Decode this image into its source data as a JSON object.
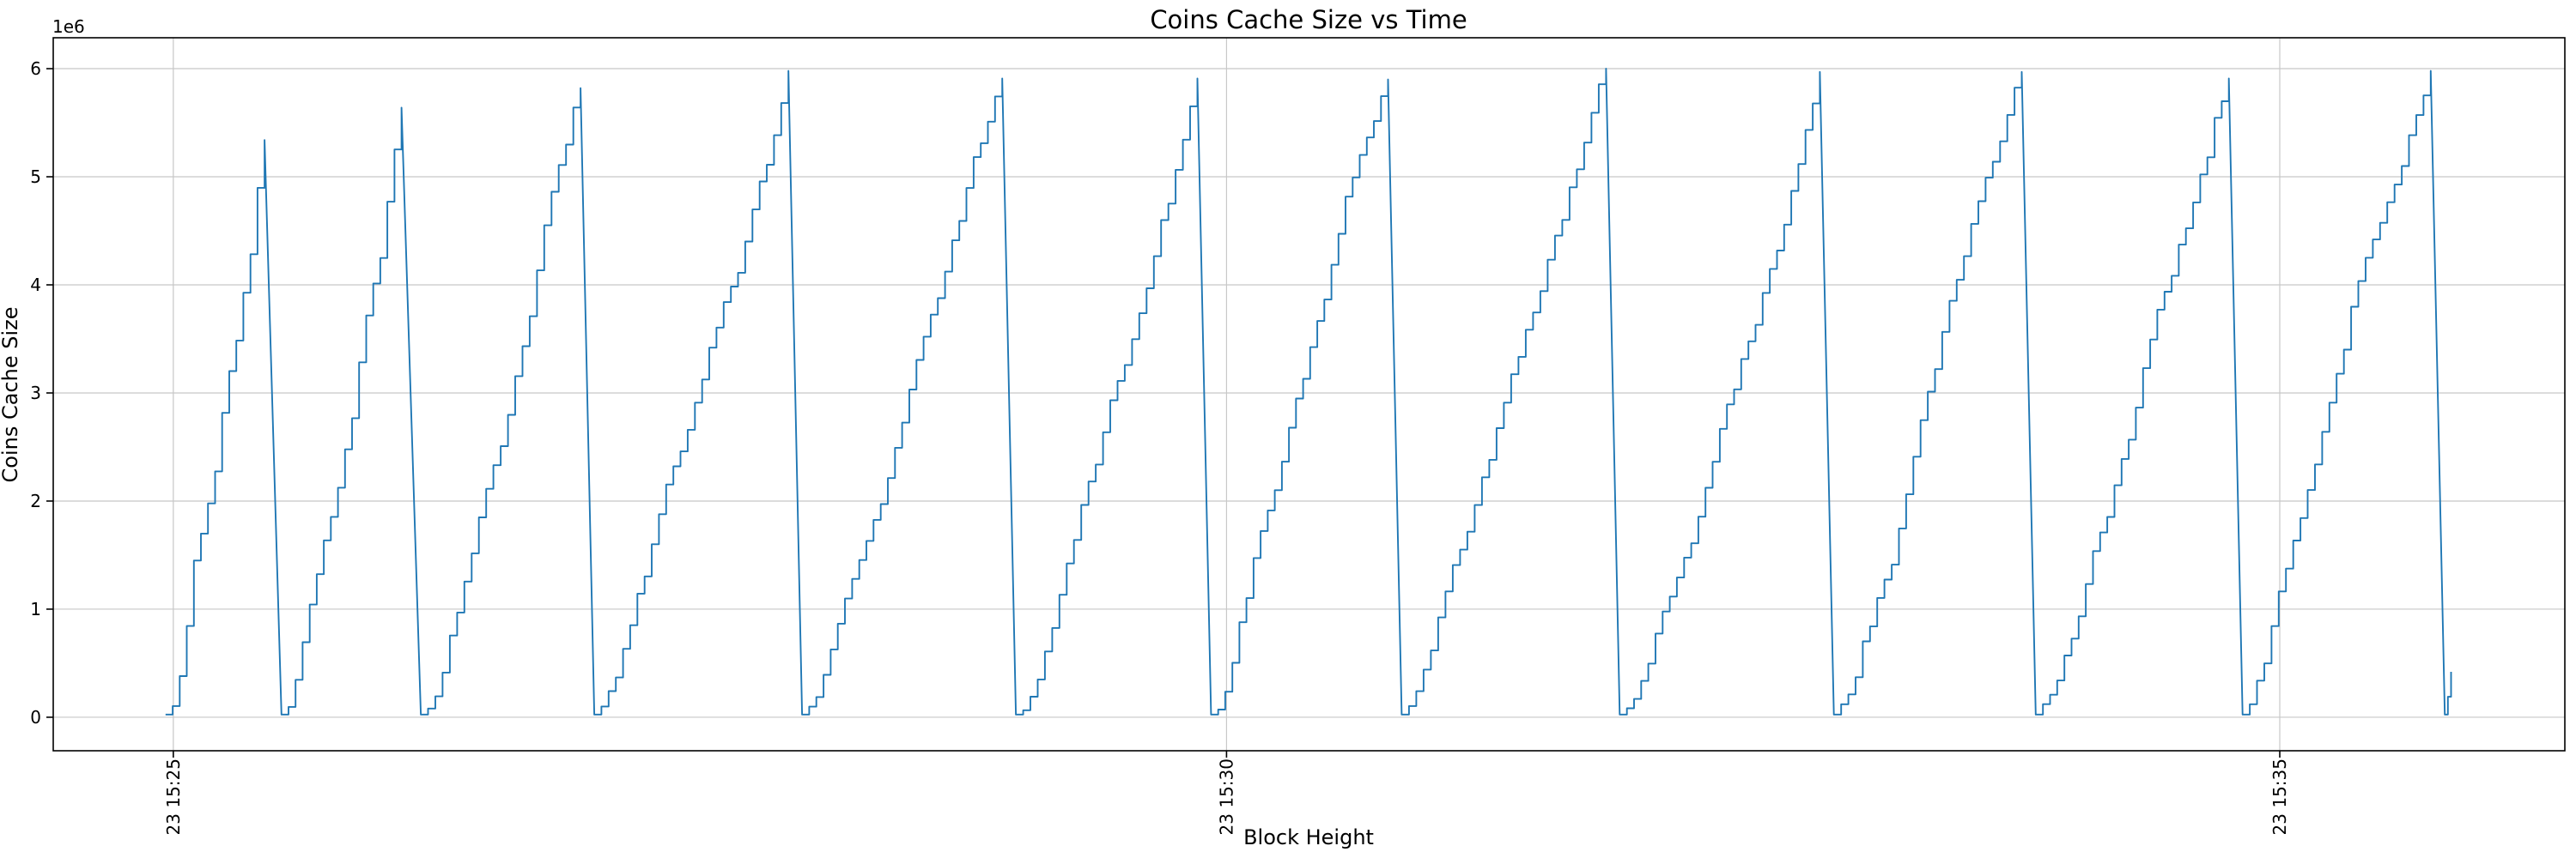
{
  "page": {
    "background": "#ffffff"
  },
  "chart_data": {
    "type": "line",
    "title": "Coins Cache Size vs Time",
    "xlabel": "Block Height",
    "ylabel": "Coins Cache Size",
    "y_offset_text": "1e6",
    "line_color": "#1f77b4",
    "grid_color": "#c8c8c8",
    "spine_color": "#000000",
    "grid": true,
    "legend_position": "none",
    "x_axis": {
      "tick_labels_rotation_deg": 90,
      "domain_seconds": [
        -34.2,
        681.2
      ],
      "ticks": [
        {
          "t": 0,
          "label": "23 15:25"
        },
        {
          "t": 300,
          "label": "23 15:30"
        },
        {
          "t": 600,
          "label": "23 15:35"
        }
      ]
    },
    "y_axis": {
      "multiplier": 1000000,
      "domain_e6": [
        -0.31,
        6.286
      ],
      "ticks": [
        0,
        1,
        2,
        3,
        4,
        5,
        6
      ]
    },
    "pattern": "sawtooth staircase: cache size climbs in steps then flushes to ~0",
    "step_seconds": 2.05,
    "sawtooth_teeth": [
      {
        "start_s": -2.2,
        "peak_s": 26.0,
        "peak_value_e6": 5.34
      },
      {
        "start_s": 30.8,
        "peak_s": 65.0,
        "peak_value_e6": 5.64
      },
      {
        "start_s": 70.5,
        "peak_s": 116.0,
        "peak_value_e6": 5.82
      },
      {
        "start_s": 119.9,
        "peak_s": 175.2,
        "peak_value_e6": 5.98
      },
      {
        "start_s": 179.1,
        "peak_s": 236.1,
        "peak_value_e6": 5.91
      },
      {
        "start_s": 240.0,
        "peak_s": 291.7,
        "peak_value_e6": 5.91
      },
      {
        "start_s": 295.6,
        "peak_s": 346.0,
        "peak_value_e6": 5.9
      },
      {
        "start_s": 349.9,
        "peak_s": 408.1,
        "peak_value_e6": 6.0
      },
      {
        "start_s": 412.0,
        "peak_s": 469.0,
        "peak_value_e6": 5.97
      },
      {
        "start_s": 473.0,
        "peak_s": 526.5,
        "peak_value_e6": 5.97
      },
      {
        "start_s": 530.5,
        "peak_s": 585.5,
        "peak_value_e6": 5.91
      },
      {
        "start_s": 589.4,
        "peak_s": 643.0,
        "peak_value_e6": 5.98
      }
    ],
    "tail_stub": {
      "start_s": 647.0,
      "end_s": 648.8,
      "end_value_e6": 0.42
    }
  }
}
